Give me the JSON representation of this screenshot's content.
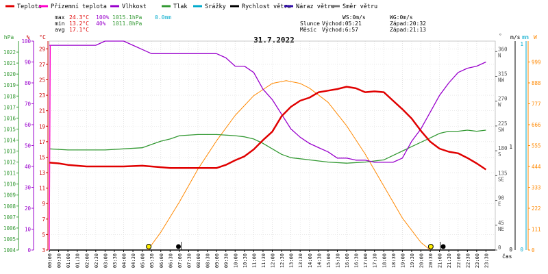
{
  "chart_data": {
    "type": "line",
    "title": "31.7.2022",
    "legend": [
      {
        "name": "Teplota",
        "color": "#e00000"
      },
      {
        "name": "Přízemní teplota",
        "color": "#ff00cc"
      },
      {
        "name": "Vlhkost",
        "color": "#9900cc"
      },
      {
        "name": "Tlak",
        "color": "#339933"
      },
      {
        "name": "Srážky",
        "color": "#00aacc"
      },
      {
        "name": "Rychlost větru",
        "color": "#000000"
      },
      {
        "name": "Náraz větru",
        "color": "#3311aa"
      },
      {
        "name": "Směr větru",
        "color": "#777777"
      }
    ],
    "stats": {
      "max": {
        "label": "max",
        "temp": "24.3°C",
        "hum": "100%",
        "press": "1015.1hPa",
        "rain": "0.0mm"
      },
      "min": {
        "label": "min",
        "temp": "13.2°C",
        "hum": "40%",
        "press": "1011.8hPa"
      },
      "avg": {
        "label": "avg",
        "temp": "17.1°C"
      }
    },
    "wind_info": {
      "ws": "WS:0m/s",
      "wg": "WG:0m/s"
    },
    "sun_info": {
      "label": "Slunce",
      "rise": "Východ:05:21",
      "set": "Západ:20:32"
    },
    "moon_info": {
      "label": "Měsíc",
      "rise": "Východ:6:57",
      "set": "Západ:21:13"
    },
    "axes": {
      "hpa": {
        "unit": "hPa",
        "ticks": [
          "1004",
          "1005",
          "1006",
          "1007",
          "1008",
          "1009",
          "1010",
          "1011",
          "1012",
          "1013",
          "1014",
          "1015",
          "1016",
          "1017",
          "1018",
          "1019",
          "1020",
          "1021",
          "1022"
        ],
        "range": [
          1004,
          1023
        ]
      },
      "pct": {
        "unit": "%",
        "ticks": [
          "0",
          "10",
          "20",
          "30",
          "40",
          "50",
          "60",
          "70",
          "80",
          "90",
          "100"
        ],
        "range": [
          0,
          100
        ]
      },
      "temp": {
        "unit": "°C",
        "ticks": [
          "3",
          "5",
          "7",
          "9",
          "11",
          "13",
          "15",
          "17",
          "19",
          "21",
          "23",
          "25",
          "27",
          "29"
        ],
        "range": [
          3,
          30
        ]
      },
      "dir": {
        "unit": "°",
        "ticks": [
          "0",
          "45",
          "90",
          "135",
          "180",
          "225",
          "270",
          "315",
          "360"
        ],
        "labels": [
          "",
          "NE",
          "E",
          "SE",
          "S",
          "SW",
          "W",
          "NW",
          "N"
        ]
      },
      "wind": {
        "unit": "m/s",
        "ticks": [
          "0",
          "1"
        ]
      },
      "rain": {
        "unit": "mm",
        "ticks": [
          "0",
          "1"
        ]
      },
      "solar": {
        "unit": "W",
        "ticks": [
          "0",
          "111",
          "222",
          "333",
          "444",
          "555",
          "666",
          "777",
          "888",
          "999"
        ]
      },
      "time": {
        "label": "čas",
        "ticks": [
          "00:00",
          "00:30",
          "01:00",
          "01:30",
          "02:00",
          "02:30",
          "03:00",
          "03:30",
          "04:00",
          "04:30",
          "05:00",
          "05:30",
          "06:00",
          "06:30",
          "07:00",
          "07:30",
          "08:00",
          "08:30",
          "09:00",
          "09:30",
          "10:00",
          "10:30",
          "11:00",
          "11:30",
          "12:00",
          "12:30",
          "13:00",
          "13:30",
          "14:00",
          "14:30",
          "15:00",
          "15:30",
          "16:00",
          "16:30",
          "17:00",
          "17:30",
          "18:00",
          "18:30",
          "19:00",
          "19:30",
          "20:00",
          "20:30",
          "21:00",
          "21:30",
          "22:00",
          "22:30",
          "23:00",
          "23:30"
        ]
      }
    },
    "series": [
      {
        "name": "Teplota",
        "axis": "temp",
        "color": "#e00000",
        "x": [
          0,
          0.5,
          1,
          1.5,
          2,
          3,
          4,
          5,
          6,
          6.5,
          7,
          7.5,
          8,
          9,
          9.5,
          10,
          10.5,
          11,
          11.5,
          12,
          12.5,
          13,
          13.5,
          14,
          14.5,
          15,
          15.5,
          16,
          16.5,
          17,
          17.5,
          18,
          18.5,
          19,
          19.5,
          20,
          20.5,
          21,
          21.5,
          22,
          22.5,
          23,
          23.5
        ],
        "y": [
          14.3,
          14.2,
          14.0,
          13.9,
          13.8,
          13.8,
          13.8,
          13.9,
          13.7,
          13.6,
          13.6,
          13.6,
          13.6,
          13.6,
          14.0,
          14.6,
          15.1,
          16.0,
          17.2,
          18.3,
          20.3,
          21.5,
          22.3,
          22.7,
          23.4,
          23.6,
          23.8,
          24.1,
          23.9,
          23.4,
          23.5,
          23.4,
          22.3,
          21.2,
          20.0,
          18.4,
          17.0,
          16.1,
          15.7,
          15.5,
          14.9,
          14.2,
          13.4
        ]
      },
      {
        "name": "Vlhkost",
        "axis": "pct",
        "color": "#9900cc",
        "x": [
          0,
          1,
          2,
          2.5,
          3,
          4,
          4.5,
          5,
          5.5,
          6,
          6.5,
          7,
          8,
          9,
          9.5,
          10,
          10.5,
          11,
          11.5,
          12,
          12.5,
          13,
          13.5,
          14,
          14.5,
          15,
          15.5,
          16,
          16.5,
          17,
          17.5,
          18,
          18.5,
          19,
          19.5,
          20,
          20.5,
          21,
          21.5,
          22,
          22.5,
          23,
          23.5
        ],
        "y": [
          98,
          98,
          98,
          98,
          100,
          100,
          98,
          96,
          94,
          94,
          94,
          94,
          94,
          94,
          92,
          88,
          88,
          85,
          77,
          72,
          65,
          58,
          54,
          51,
          49,
          47,
          44,
          44,
          43,
          43,
          42,
          42,
          42,
          44,
          52,
          58,
          66,
          74,
          80,
          85,
          87,
          88,
          90
        ]
      },
      {
        "name": "Tlak",
        "axis": "hpa",
        "color": "#339933",
        "x": [
          0,
          1,
          2,
          3,
          4,
          5,
          5.5,
          6,
          6.5,
          7,
          8,
          9,
          10,
          10.5,
          11,
          11.5,
          12,
          12.5,
          13,
          14,
          15,
          16,
          17,
          18,
          18.5,
          19,
          19.5,
          20,
          20.5,
          21,
          21.5,
          22,
          22.5,
          23,
          23.5
        ],
        "y": [
          1013.2,
          1013.1,
          1013.1,
          1013.1,
          1013.2,
          1013.3,
          1013.6,
          1013.9,
          1014.1,
          1014.4,
          1014.5,
          1014.5,
          1014.4,
          1014.3,
          1014.1,
          1013.7,
          1013.2,
          1012.7,
          1012.4,
          1012.2,
          1012.0,
          1011.9,
          1012.0,
          1012.2,
          1012.6,
          1013.0,
          1013.4,
          1013.8,
          1014.2,
          1014.6,
          1014.8,
          1014.8,
          1014.9,
          1014.8,
          1014.9
        ]
      },
      {
        "name": "Přízemní teplota",
        "axis": "temp",
        "color": "#ff00cc",
        "x": [
          0,
          0.05
        ],
        "y": [
          3,
          29.5
        ]
      },
      {
        "name": "Solar",
        "axis": "solar",
        "color": "#ff8800",
        "x": [
          5.3,
          6,
          7,
          8,
          9,
          10,
          11,
          12,
          12.75,
          13.5,
          14,
          15,
          16,
          17,
          18,
          19,
          20,
          20.5
        ],
        "y": [
          0,
          95,
          255,
          430,
          580,
          715,
          820,
          885,
          900,
          885,
          860,
          785,
          660,
          510,
          340,
          170,
          40,
          0
        ]
      }
    ],
    "events": [
      {
        "label": "sunrise",
        "x": 5.35
      },
      {
        "label": "sunset",
        "x": 20.53
      },
      {
        "label": "moonrise",
        "x": 6.95
      },
      {
        "label": "moonset",
        "x": 21.2
      }
    ]
  }
}
